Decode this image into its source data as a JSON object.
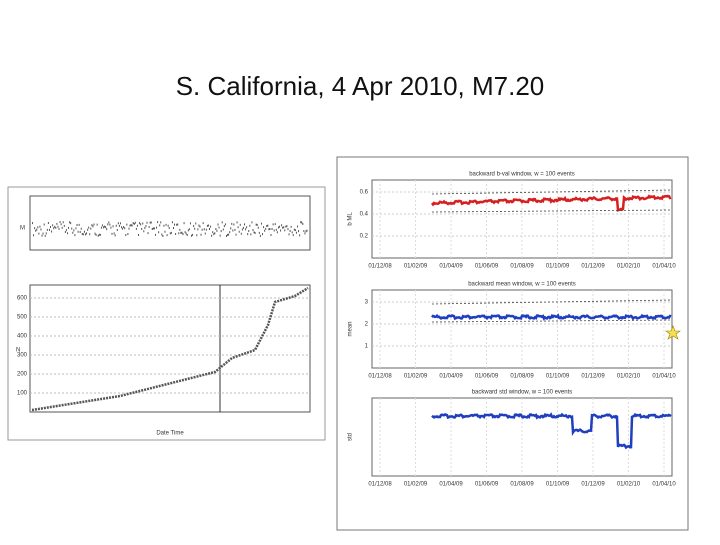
{
  "title": "S. California, 4 Apr 2010, M7.20",
  "left_figure": {
    "top_y_label": "M",
    "bottom_y_label": "N",
    "x_label": "Date Time",
    "bottom_y_ticks": [
      "600",
      "500",
      "400",
      "300",
      "200",
      "100"
    ]
  },
  "right_figure": {
    "panels": [
      {
        "title": "backward b-val window, w = 100 events",
        "y_label": "b ML",
        "y_ticks": [
          "0.6",
          "0.4",
          "0.2"
        ]
      },
      {
        "title": "backward mean window, w = 100 events",
        "y_label": "mean",
        "y_ticks": [
          "3",
          "2",
          "1"
        ]
      },
      {
        "title": "backward std window, w = 100 events",
        "y_label": "std",
        "y_ticks": []
      }
    ],
    "x_ticks": [
      "01/12/08",
      "01/02/09",
      "01/04/09",
      "01/06/09",
      "01/08/09",
      "01/10/09",
      "01/12/09",
      "01/02/10",
      "01/04/10"
    ]
  }
}
